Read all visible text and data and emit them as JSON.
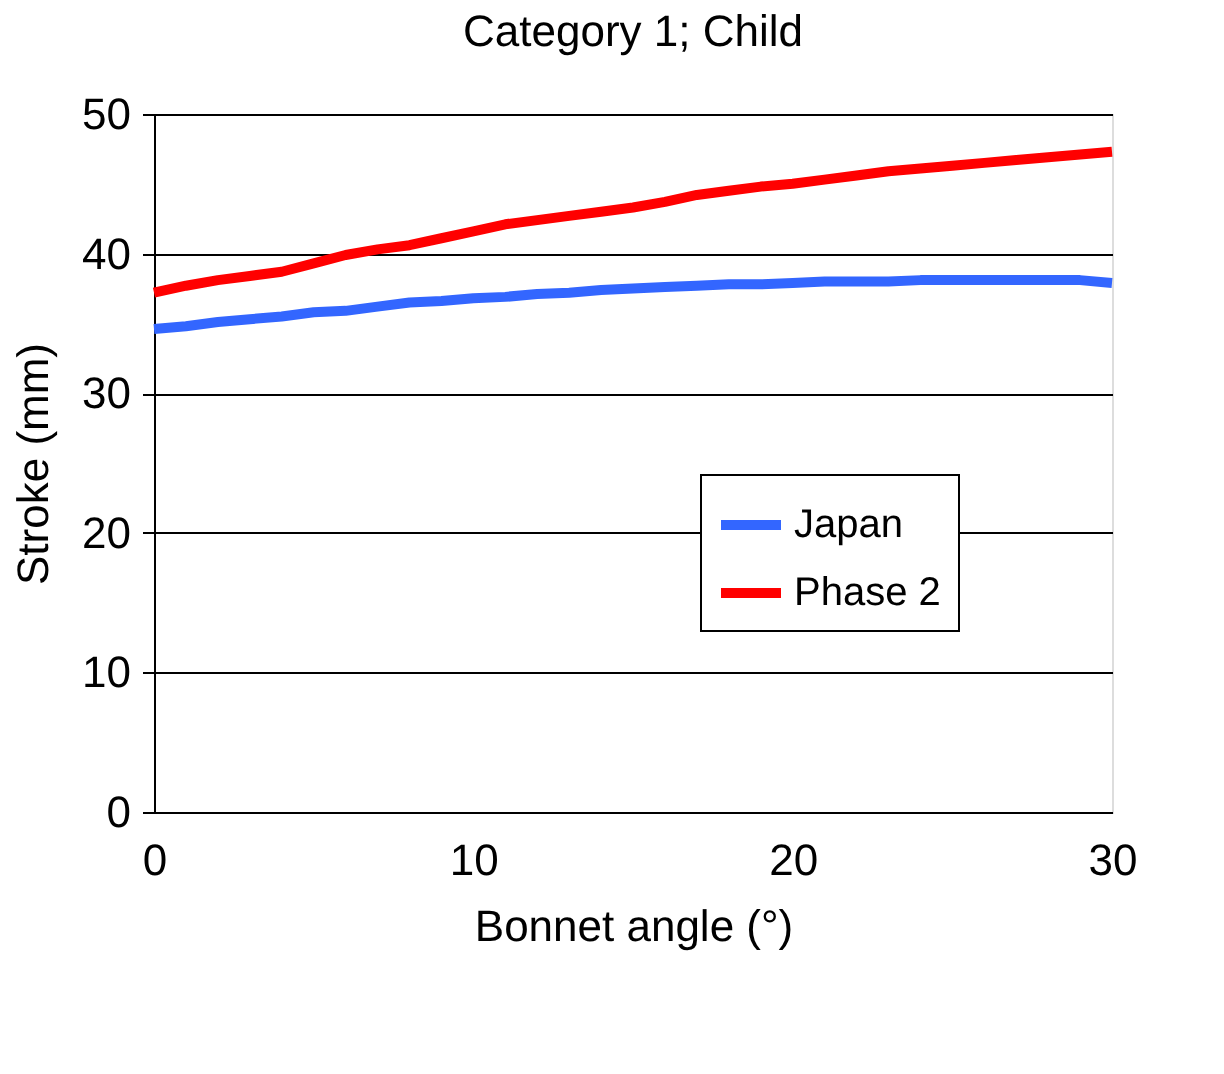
{
  "chart_data": {
    "type": "line",
    "title": "Category 1; Child",
    "xlabel": "Bonnet angle (°)",
    "ylabel": "Stroke (mm)",
    "x": [
      0,
      1,
      2,
      3,
      4,
      5,
      6,
      7,
      8,
      9,
      10,
      11,
      12,
      13,
      14,
      15,
      16,
      17,
      18,
      19,
      20,
      21,
      22,
      23,
      24,
      25,
      26,
      27,
      28,
      29,
      30
    ],
    "series": [
      {
        "name": "Japan",
        "color": "#3366ff",
        "values": [
          34.6,
          34.8,
          35.1,
          35.3,
          35.5,
          35.8,
          35.9,
          36.2,
          36.5,
          36.6,
          36.8,
          36.9,
          37.1,
          37.2,
          37.4,
          37.5,
          37.6,
          37.7,
          37.8,
          37.8,
          37.9,
          38.0,
          38.0,
          38.0,
          38.1,
          38.1,
          38.1,
          38.1,
          38.1,
          38.1,
          37.9
        ]
      },
      {
        "name": "Phase 2",
        "color": "#ff0000",
        "values": [
          37.2,
          37.7,
          38.1,
          38.4,
          38.7,
          39.3,
          39.9,
          40.3,
          40.6,
          41.1,
          41.6,
          42.1,
          42.4,
          42.7,
          43.0,
          43.3,
          43.7,
          44.2,
          44.5,
          44.8,
          45.0,
          45.3,
          45.6,
          45.9,
          46.1,
          46.3,
          46.5,
          46.7,
          46.9,
          47.1,
          47.3
        ]
      }
    ],
    "xlim": [
      0,
      30
    ],
    "xticks": [
      0,
      10,
      20,
      30
    ],
    "ylim": [
      0,
      50
    ],
    "yticks": [
      0,
      10,
      20,
      30,
      40,
      50
    ],
    "grid": "y",
    "legend": "right",
    "marker": "none",
    "line_style": "solid"
  }
}
